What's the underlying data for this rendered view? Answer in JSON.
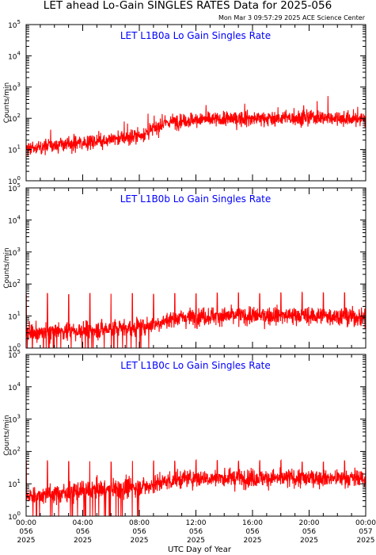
{
  "header": {
    "title": "LET ahead Lo-Gain SINGLES RATES Data for 2025-056",
    "timestamp": "Mon Mar  3 09:57:29 2025 ACE Science Center"
  },
  "colors": {
    "data": "#ff0000",
    "panel_title": "#0000ff",
    "axes": "#000000"
  },
  "x_axis": {
    "label": "UTC Day of Year",
    "ticks": [
      {
        "value": 0,
        "lines": [
          "00:00",
          "056",
          "2025"
        ]
      },
      {
        "value": 4,
        "lines": [
          "04:00",
          "056",
          "2025"
        ]
      },
      {
        "value": 8,
        "lines": [
          "08:00",
          "056",
          "2025"
        ]
      },
      {
        "value": 12,
        "lines": [
          "12:00",
          "056",
          "2025"
        ]
      },
      {
        "value": 16,
        "lines": [
          "16:00",
          "056",
          "2025"
        ]
      },
      {
        "value": 20,
        "lines": [
          "20:00",
          "056",
          "2025"
        ]
      },
      {
        "value": 24,
        "lines": [
          "00:00",
          "057",
          "2025"
        ]
      }
    ]
  },
  "y_axis": {
    "label": "Counts/min",
    "scale": "log",
    "range": [
      1,
      100000
    ],
    "tick_labels": [
      {
        "base": "10",
        "exp": "0"
      },
      {
        "base": "10",
        "exp": "1"
      },
      {
        "base": "10",
        "exp": "2"
      },
      {
        "base": "10",
        "exp": "3"
      },
      {
        "base": "10",
        "exp": "4"
      },
      {
        "base": "10",
        "exp": "5"
      }
    ]
  },
  "chart_data": [
    {
      "type": "line",
      "title": "LET L1B0a Lo Gain Singles Rate",
      "ylabel": "Counts/min",
      "xlabel": "",
      "yscale": "log",
      "ylim": [
        1,
        100000
      ],
      "xlim": [
        "00:00 056",
        "00:00 057"
      ],
      "series": [
        {
          "x": [
            "00:00",
            "01:00",
            "02:00",
            "03:00",
            "04:00",
            "05:00",
            "06:00",
            "07:00",
            "08:00",
            "08:30",
            "09:00",
            "09:30",
            "10:00",
            "11:00",
            "12:00",
            "13:00",
            "14:00",
            "15:00",
            "16:00",
            "17:00",
            "18:00",
            "19:00",
            "20:00",
            "21:00",
            "22:00",
            "23:00",
            "24:00"
          ],
          "y": [
            10,
            12,
            14,
            15,
            17,
            19,
            21,
            24,
            28,
            35,
            45,
            60,
            75,
            85,
            90,
            92,
            95,
            97,
            98,
            100,
            102,
            104,
            106,
            104,
            100,
            96,
            92
          ]
        }
      ]
    },
    {
      "type": "line",
      "title": "LET L1B0b Lo Gain Singles Rate",
      "ylabel": "Counts/min",
      "xlabel": "",
      "yscale": "log",
      "ylim": [
        1,
        100000
      ],
      "xlim": [
        "00:00 056",
        "00:00 057"
      ],
      "series": [
        {
          "x": [
            "00:00",
            "01:00",
            "02:00",
            "03:00",
            "04:00",
            "05:00",
            "06:00",
            "07:00",
            "08:00",
            "09:00",
            "10:00",
            "11:00",
            "12:00",
            "13:00",
            "14:00",
            "15:00",
            "16:00",
            "17:00",
            "18:00",
            "19:00",
            "20:00",
            "21:00",
            "22:00",
            "23:00",
            "24:00"
          ],
          "y": [
            3,
            3,
            3.2,
            3.4,
            3.5,
            3.7,
            4,
            4.2,
            4.5,
            5.5,
            7.5,
            9,
            9.5,
            10,
            10,
            10,
            10,
            10.5,
            10.5,
            10.5,
            10,
            10,
            10,
            9.5,
            9
          ]
        }
      ]
    },
    {
      "type": "line",
      "title": "LET L1B0c Lo Gain Singles Rate",
      "ylabel": "Counts/min",
      "xlabel": "",
      "yscale": "log",
      "ylim": [
        1,
        100000
      ],
      "xlim": [
        "00:00 056",
        "00:00 057"
      ],
      "series": [
        {
          "x": [
            "00:00",
            "01:00",
            "02:00",
            "03:00",
            "04:00",
            "05:00",
            "06:00",
            "07:00",
            "08:00",
            "09:00",
            "10:00",
            "11:00",
            "12:00",
            "13:00",
            "14:00",
            "15:00",
            "16:00",
            "17:00",
            "18:00",
            "19:00",
            "20:00",
            "21:00",
            "22:00",
            "23:00",
            "24:00"
          ],
          "y": [
            4,
            4.5,
            5,
            5.5,
            6,
            6.5,
            7,
            7.5,
            8,
            9.5,
            12,
            14,
            15,
            15,
            15,
            15,
            15,
            15,
            15,
            15,
            15,
            15,
            15,
            15,
            14
          ]
        }
      ]
    }
  ]
}
